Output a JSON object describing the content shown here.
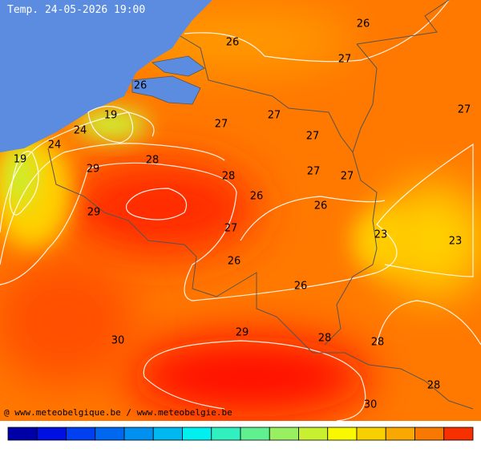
{
  "title": "Temp. 24-05-2026 19:00",
  "credit": "@ www.meteobelgique.be / www.meteobelgie.be",
  "contour_labels": [
    26,
    26,
    27,
    27,
    26,
    19,
    24,
    24,
    19,
    27,
    27,
    27,
    27,
    27,
    28,
    29,
    28,
    26,
    26,
    29,
    27,
    23,
    23,
    26,
    26,
    30,
    29,
    28,
    28,
    28,
    30
  ]
}
